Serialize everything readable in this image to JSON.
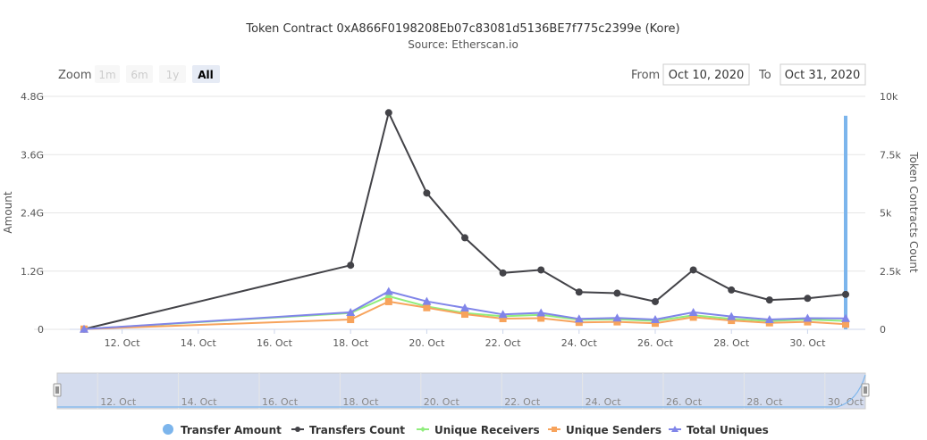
{
  "header": {
    "title": "Token Contract 0xA866F0198208Eb07c83081d5136BE7f775c2399e (Kore)",
    "subtitle": "Source: Etherscan.io"
  },
  "range_selector": {
    "zoom_label": "Zoom",
    "buttons": [
      "1m",
      "6m",
      "1y",
      "All"
    ],
    "active_button": "All",
    "from_label": "From",
    "from_value": "Oct 10, 2020",
    "to_label": "To",
    "to_value": "Oct 31, 2020"
  },
  "colors": {
    "transfer_amount": "#7cb5ec",
    "transfers_count": "#434348",
    "unique_receivers": "#90ed7d",
    "unique_senders": "#f7a35c",
    "total_uniques": "#8085e9",
    "navigator_fill": "#ccd6eb"
  },
  "chart_data": {
    "type": "line",
    "title": "Token Contract 0xA866F0198208Eb07c83081d5136BE7f775c2399e (Kore)",
    "subtitle": "Source: Etherscan.io",
    "x_tick_labels": [
      "12. Oct",
      "14. Oct",
      "16. Oct",
      "18. Oct",
      "20. Oct",
      "22. Oct",
      "24. Oct",
      "26. Oct",
      "28. Oct",
      "30. Oct"
    ],
    "x_range": [
      11,
      31
    ],
    "y_left": {
      "label": "Amount",
      "range": [
        0,
        4.8
      ],
      "ticks": [
        "0",
        "1.2G",
        "2.4G",
        "3.6G",
        "4.8G"
      ]
    },
    "y_right": {
      "label": "Token Contracts Count",
      "range": [
        0,
        10000
      ],
      "ticks": [
        "0",
        "2.5k",
        "5k",
        "7.5k",
        "10k"
      ]
    },
    "grid": true,
    "legend_position": "bottom",
    "series": [
      {
        "name": "Transfer Amount",
        "axis": "left",
        "type": "column",
        "x": [
          31
        ],
        "values": [
          4.4
        ]
      },
      {
        "name": "Transfers Count",
        "axis": "right",
        "x": [
          11,
          18,
          19,
          20,
          21,
          22,
          23,
          24,
          25,
          26,
          27,
          28,
          29,
          30,
          31
        ],
        "values": [
          10,
          2750,
          9300,
          5850,
          3930,
          2420,
          2550,
          1600,
          1550,
          1190,
          2550,
          1690,
          1260,
          1330,
          1500
        ]
      },
      {
        "name": "Unique Receivers",
        "axis": "right",
        "x": [
          11,
          18,
          19,
          20,
          21,
          22,
          23,
          24,
          25,
          26,
          27,
          28,
          29,
          30,
          31
        ],
        "values": [
          10,
          700,
          1420,
          980,
          700,
          560,
          620,
          410,
          430,
          360,
          600,
          450,
          360,
          420,
          360
        ]
      },
      {
        "name": "Unique Senders",
        "axis": "right",
        "x": [
          11,
          18,
          19,
          20,
          21,
          22,
          23,
          24,
          25,
          26,
          27,
          28,
          29,
          30,
          31
        ],
        "values": [
          10,
          420,
          1190,
          930,
          650,
          460,
          480,
          300,
          320,
          260,
          520,
          380,
          280,
          320,
          220
        ]
      },
      {
        "name": "Total Uniques",
        "axis": "right",
        "x": [
          11,
          18,
          19,
          20,
          21,
          22,
          23,
          24,
          25,
          26,
          27,
          28,
          29,
          30,
          31
        ],
        "values": [
          10,
          730,
          1630,
          1200,
          920,
          640,
          710,
          450,
          490,
          420,
          730,
          550,
          420,
          480,
          470
        ]
      }
    ]
  }
}
